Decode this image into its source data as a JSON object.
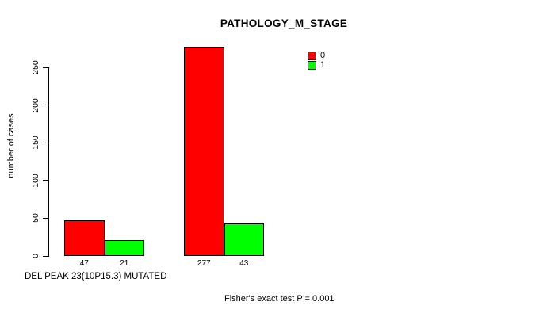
{
  "chart_data": {
    "type": "bar",
    "title": "PATHOLOGY_M_STAGE",
    "ylabel": "number of cases",
    "xlabel": "DEL PEAK 23(10P15.3) MUTATED",
    "annotation": "Fisher's exact test P = 0.001",
    "ylim": [
      0,
      277
    ],
    "yticks": [
      0,
      50,
      100,
      150,
      200,
      250
    ],
    "grid": false,
    "series": [
      {
        "name": "0",
        "color": "#ff0000",
        "values": [
          47,
          277
        ]
      },
      {
        "name": "1",
        "color": "#00ff00",
        "values": [
          21,
          43
        ]
      }
    ],
    "bar_value_labels": [
      "47",
      "21",
      "277",
      "43"
    ],
    "legend": {
      "position": "top-right",
      "entries": [
        {
          "label": "0",
          "color": "#ff0000"
        },
        {
          "label": "1",
          "color": "#00ff00"
        }
      ]
    }
  },
  "colors": {
    "background": "#ffffff",
    "axis": "#000000",
    "text": "#000000",
    "bar_red": "#ff0000",
    "bar_green": "#00ff00"
  }
}
